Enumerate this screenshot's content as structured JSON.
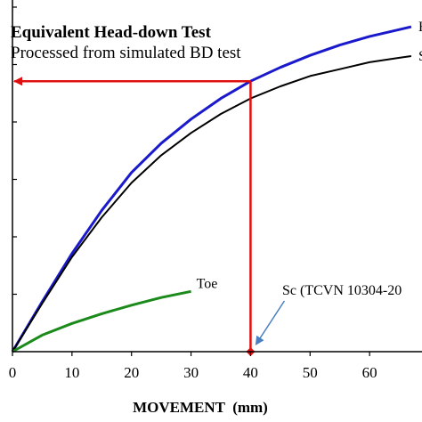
{
  "chart_data": {
    "type": "line",
    "title": "Equivalent Head-down Test",
    "subtitle": "Processed from simulated BD test",
    "xlabel": "MOVEMENT  (mm)",
    "ylabel": "",
    "xlim": [
      0,
      70
    ],
    "ylim": [
      0,
      1
    ],
    "x_ticks": [
      0,
      10,
      20,
      30,
      40,
      50,
      60
    ],
    "y_tick_count": 6,
    "grid": false,
    "series": [
      {
        "name": "H",
        "color": "#1a1acc",
        "x": [
          0,
          5,
          10,
          15,
          20,
          25,
          30,
          35,
          40,
          45,
          50,
          55,
          60,
          65,
          67
        ],
        "y": [
          0,
          0.145,
          0.285,
          0.41,
          0.52,
          0.605,
          0.675,
          0.735,
          0.785,
          0.825,
          0.86,
          0.89,
          0.915,
          0.935,
          0.943
        ]
      },
      {
        "name": "S",
        "color": "#000000",
        "x": [
          0,
          5,
          10,
          15,
          20,
          25,
          30,
          35,
          40,
          45,
          50,
          55,
          60,
          65,
          67
        ],
        "y": [
          0,
          0.14,
          0.275,
          0.39,
          0.49,
          0.57,
          0.635,
          0.69,
          0.735,
          0.77,
          0.8,
          0.82,
          0.84,
          0.853,
          0.858
        ]
      },
      {
        "name": "Toe",
        "color": "#1a8a1a",
        "x": [
          0,
          5,
          10,
          15,
          20,
          25,
          30
        ],
        "y": [
          0,
          0.048,
          0.082,
          0.11,
          0.135,
          0.157,
          0.175
        ]
      }
    ],
    "annotations": {
      "sc_label": "Sc (TCVN 10304-20",
      "sc_x": 40,
      "sc_y": 0.785,
      "guide_color": "#e01010",
      "pointer_color": "#4a7fc0"
    }
  }
}
